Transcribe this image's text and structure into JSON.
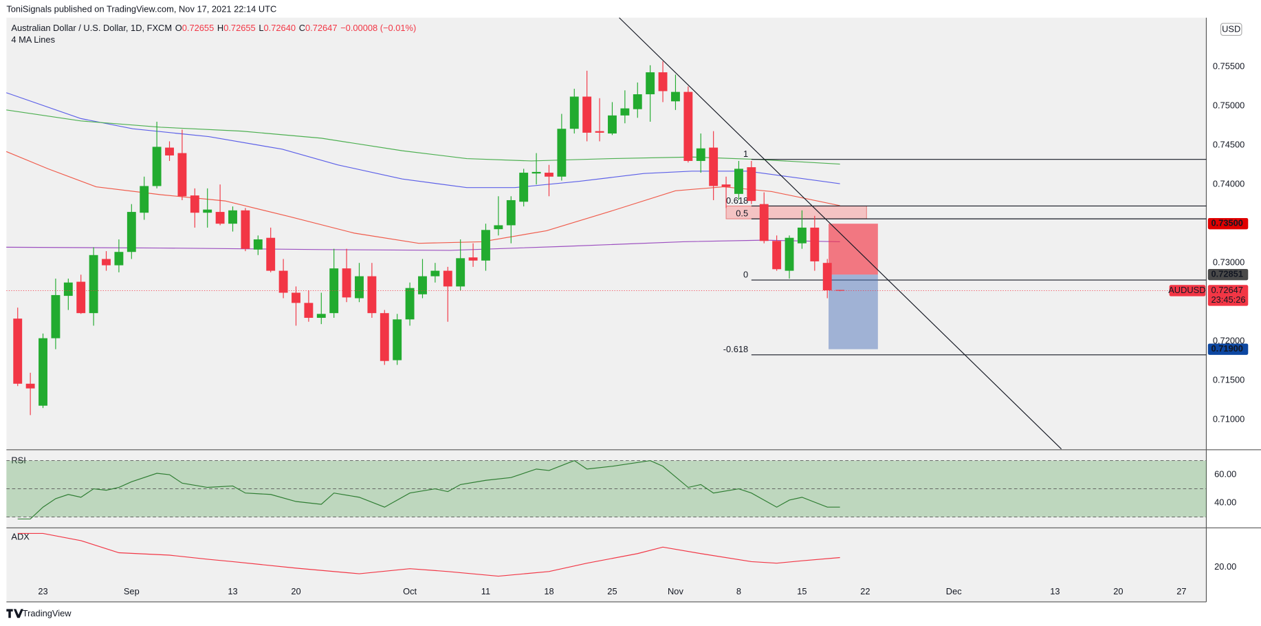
{
  "header": {
    "publisher": "ToniSignals published on TradingView.com, Nov 17, 2021 22:14 UTC",
    "brand": "TradingView"
  },
  "chart_data": {
    "type": "candlestick",
    "symbol": "Australian Dollar / U.S. Dollar, 1D, FXCM",
    "ohlc_legend": [
      {
        "key": "O",
        "text": "0.72655"
      },
      {
        "key": "H",
        "text": "0.72655"
      },
      {
        "key": "L",
        "text": "0.72640"
      },
      {
        "key": "C",
        "text": "0.72647"
      }
    ],
    "change": "−0.00008 (−0.01%)",
    "indicator": "4 MA Lines",
    "currency": "USD",
    "xlim": [
      -0.89,
      93.96
    ],
    "xticks": [
      {
        "value": 2,
        "label": "23"
      },
      {
        "value": 9,
        "label": "Sep"
      },
      {
        "value": 17,
        "label": "13"
      },
      {
        "value": 22,
        "label": "20"
      },
      {
        "value": 31,
        "label": "Oct"
      },
      {
        "value": 37,
        "label": "11"
      },
      {
        "value": 42,
        "label": "18"
      },
      {
        "value": 47,
        "label": "25"
      },
      {
        "value": 52,
        "label": "Nov"
      },
      {
        "value": 57,
        "label": "8"
      },
      {
        "value": 62,
        "label": "15"
      },
      {
        "value": 67,
        "label": "22"
      },
      {
        "value": 74,
        "label": "Dec"
      },
      {
        "value": 82,
        "label": "13"
      },
      {
        "value": 87,
        "label": "20"
      },
      {
        "value": 92,
        "label": "27"
      }
    ],
    "ylim": [
      0.70628,
      0.76126
    ],
    "yticks": [
      {
        "value": 0.755,
        "label": "0.75500"
      },
      {
        "value": 0.75,
        "label": "0.75000"
      },
      {
        "value": 0.745,
        "label": "0.74500"
      },
      {
        "value": 0.74,
        "label": "0.74000"
      },
      {
        "value": 0.73,
        "label": "0.73000"
      },
      {
        "value": 0.72,
        "label": "0.72000"
      },
      {
        "value": 0.715,
        "label": "0.71500"
      },
      {
        "value": 0.71,
        "label": "0.71000"
      }
    ],
    "up_color": "#22ab2f",
    "down_color": "#f23645",
    "open": [
      0.7229,
      0.7146,
      0.7118,
      0.7204,
      0.7258,
      0.7276,
      0.7236,
      0.7305,
      0.7297,
      0.7314,
      0.7364,
      0.7398,
      0.7447,
      0.744,
      0.7386,
      0.7364,
      0.7365,
      0.735,
      0.7367,
      0.7317,
      0.7332,
      0.729,
      0.7262,
      0.7249,
      0.723,
      0.7236,
      0.7293,
      0.7255,
      0.7283,
      0.7236,
      0.7176,
      0.7228,
      0.726,
      0.7283,
      0.729,
      0.727,
      0.7307,
      0.7303,
      0.7343,
      0.7348,
      0.7378,
      0.7414,
      0.7415,
      0.741,
      0.7471,
      0.7512,
      0.7468,
      0.7465,
      0.7488,
      0.7496,
      0.7515,
      0.7543,
      0.7506,
      0.7518,
      0.743,
      0.7447,
      0.74,
      0.7388,
      0.7422,
      0.7375,
      0.7328,
      0.729,
      0.7325,
      0.7345,
      0.73,
      0.72655
    ],
    "high": [
      0.7243,
      0.716,
      0.721,
      0.728,
      0.728,
      0.7285,
      0.732,
      0.7315,
      0.733,
      0.7375,
      0.741,
      0.748,
      0.7455,
      0.747,
      0.7395,
      0.7395,
      0.74,
      0.7372,
      0.737,
      0.7335,
      0.7345,
      0.7305,
      0.727,
      0.7265,
      0.7262,
      0.7318,
      0.7318,
      0.73,
      0.73,
      0.724,
      0.7235,
      0.7275,
      0.7305,
      0.73,
      0.7295,
      0.733,
      0.7325,
      0.735,
      0.7385,
      0.7385,
      0.742,
      0.744,
      0.7425,
      0.749,
      0.7522,
      0.7545,
      0.751,
      0.7505,
      0.752,
      0.753,
      0.7552,
      0.7557,
      0.754,
      0.7525,
      0.7465,
      0.7468,
      0.741,
      0.743,
      0.743,
      0.739,
      0.7335,
      0.7335,
      0.7367,
      0.736,
      0.7305,
      0.72655
    ],
    "low": [
      0.7143,
      0.7106,
      0.7115,
      0.719,
      0.724,
      0.7235,
      0.722,
      0.729,
      0.7288,
      0.7305,
      0.7355,
      0.7395,
      0.743,
      0.738,
      0.7345,
      0.7345,
      0.7348,
      0.734,
      0.7315,
      0.731,
      0.7288,
      0.7255,
      0.722,
      0.7225,
      0.7222,
      0.723,
      0.725,
      0.725,
      0.723,
      0.717,
      0.717,
      0.722,
      0.7255,
      0.7275,
      0.7225,
      0.7265,
      0.7295,
      0.729,
      0.7335,
      0.7325,
      0.7372,
      0.74,
      0.7385,
      0.7405,
      0.7465,
      0.7455,
      0.7455,
      0.7463,
      0.7478,
      0.7485,
      0.748,
      0.7505,
      0.7495,
      0.7428,
      0.7415,
      0.738,
      0.737,
      0.738,
      0.7375,
      0.7325,
      0.729,
      0.728,
      0.7318,
      0.729,
      0.7255,
      0.7264
    ],
    "close": [
      0.7146,
      0.714,
      0.7204,
      0.7259,
      0.7275,
      0.7236,
      0.731,
      0.7297,
      0.7314,
      0.7365,
      0.7398,
      0.7448,
      0.7437,
      0.7385,
      0.7364,
      0.7368,
      0.735,
      0.7367,
      0.7318,
      0.733,
      0.729,
      0.7262,
      0.7249,
      0.723,
      0.7235,
      0.7293,
      0.7256,
      0.7283,
      0.7236,
      0.7175,
      0.7228,
      0.7268,
      0.7283,
      0.729,
      0.727,
      0.7306,
      0.7303,
      0.7342,
      0.7348,
      0.738,
      0.7415,
      0.7416,
      0.741,
      0.7471,
      0.7512,
      0.7466,
      0.7466,
      0.7488,
      0.7497,
      0.7515,
      0.7543,
      0.7519,
      0.7518,
      0.743,
      0.7446,
      0.7398,
      0.7397,
      0.742,
      0.7379,
      0.7328,
      0.7292,
      0.7332,
      0.7345,
      0.7302,
      0.7265,
      0.72647
    ],
    "ma_lines": [
      {
        "color": "#5b5fe8",
        "x": [
          -0.9,
          5,
          9.1,
          15.1,
          20.9,
          25.3,
          30.4,
          35.5,
          39.3,
          44.4,
          49.5,
          53.3,
          57.7,
          65
        ],
        "values": [
          0.7517,
          0.7484,
          0.7471,
          0.7461,
          0.7445,
          0.7425,
          0.7407,
          0.7396,
          0.7396,
          0.7404,
          0.7414,
          0.7417,
          0.7417,
          0.7401
        ]
      },
      {
        "color": "#4caf50",
        "x": [
          -0.9,
          5,
          11.3,
          17.7,
          24,
          30.4,
          35.5,
          40.6,
          46.9,
          53.3,
          58.4,
          65
        ],
        "values": [
          0.7495,
          0.7481,
          0.7473,
          0.7468,
          0.7459,
          0.7443,
          0.7433,
          0.743,
          0.7433,
          0.7435,
          0.7432,
          0.7426
        ]
      },
      {
        "color": "#f05a4a",
        "x": [
          -0.9,
          2.4,
          6.2,
          11.3,
          16.4,
          21.5,
          26.6,
          31.7,
          36.7,
          41.8,
          46.9,
          52,
          55.8,
          59.6,
          65
        ],
        "values": [
          0.7442,
          0.742,
          0.7397,
          0.7387,
          0.7379,
          0.7359,
          0.7338,
          0.7325,
          0.7327,
          0.7341,
          0.7366,
          0.7392,
          0.7397,
          0.7391,
          0.7373
        ]
      },
      {
        "color": "#9c4fc0",
        "x": [
          -0.9,
          11.3,
          24,
          34.2,
          43.1,
          52.6,
          59,
          65
        ],
        "values": [
          0.732,
          0.7319,
          0.7317,
          0.7316,
          0.7321,
          0.7327,
          0.7329,
          0.7327
        ]
      }
    ],
    "trendline": {
      "x": [
        47.55,
        82.5
      ],
      "values": [
        0.76126,
        0.70628
      ]
    },
    "fib": {
      "x_start": 58,
      "levels": [
        1,
        0.618,
        0.5,
        0,
        -0.618
      ],
      "prices": [
        0.7432,
        0.73726,
        0.73562,
        0.72782,
        0.71828
      ]
    },
    "zone": {
      "x": [
        56,
        67.1
      ],
      "values": [
        0.73726,
        0.73562
      ],
      "color": "#f5b4b4"
    },
    "position": {
      "x": [
        64.1,
        68
      ],
      "stop": {
        "value": 0.735,
        "label": "0.73500"
      },
      "entry": {
        "value": 0.72851,
        "label": "0.72851"
      },
      "target": {
        "value": 0.719,
        "label": "0.71900"
      }
    },
    "last_price": {
      "symbol": "AUDUSD",
      "value": 0.72647,
      "label": "0.72647",
      "countdown": "23:45:26"
    }
  },
  "rsi": {
    "title": "RSI",
    "color": "#2e7d32",
    "ylim": [
      22.9,
      77.1
    ],
    "yticks": [
      {
        "value": 60,
        "label": "60.00"
      },
      {
        "value": 40,
        "label": "40.00"
      }
    ],
    "levels": [
      70,
      50,
      30
    ],
    "x": [
      0,
      1,
      2,
      3,
      4,
      5,
      6,
      7,
      8,
      9,
      11,
      12,
      13,
      15,
      17,
      18,
      20,
      22,
      24,
      25,
      27,
      29,
      31,
      33,
      34,
      35,
      37,
      39,
      41,
      42,
      44,
      45,
      47,
      50,
      51,
      53,
      54,
      55,
      57,
      58,
      60,
      61,
      62,
      64,
      65
    ],
    "values": [
      28.6,
      28.6,
      37,
      43,
      46,
      44,
      50,
      49,
      51,
      55,
      61,
      60,
      54,
      51,
      52,
      47,
      46,
      41,
      39,
      47,
      44,
      37,
      47,
      50,
      48,
      53,
      56,
      58,
      64,
      63,
      70,
      64,
      66,
      70,
      66,
      51,
      53,
      47,
      50,
      47,
      37,
      42,
      44,
      37,
      37
    ]
  },
  "adx": {
    "title": "ADX",
    "color": "#f23645",
    "ylim": [
      8.6,
      47.4
    ],
    "yticks": [
      {
        "value": 20,
        "label": "20.00"
      }
    ],
    "x": [
      0,
      2,
      5,
      8,
      12,
      15,
      17,
      22,
      27,
      31,
      34,
      38,
      42,
      45,
      49,
      51,
      54,
      58,
      60,
      62,
      65
    ],
    "values": [
      44,
      44,
      38.9,
      30.3,
      28.6,
      25.7,
      24,
      19.4,
      15.4,
      19,
      17,
      13.7,
      17,
      22.9,
      29.7,
      34.3,
      29.7,
      24,
      22.9,
      24.6,
      26.9
    ]
  }
}
